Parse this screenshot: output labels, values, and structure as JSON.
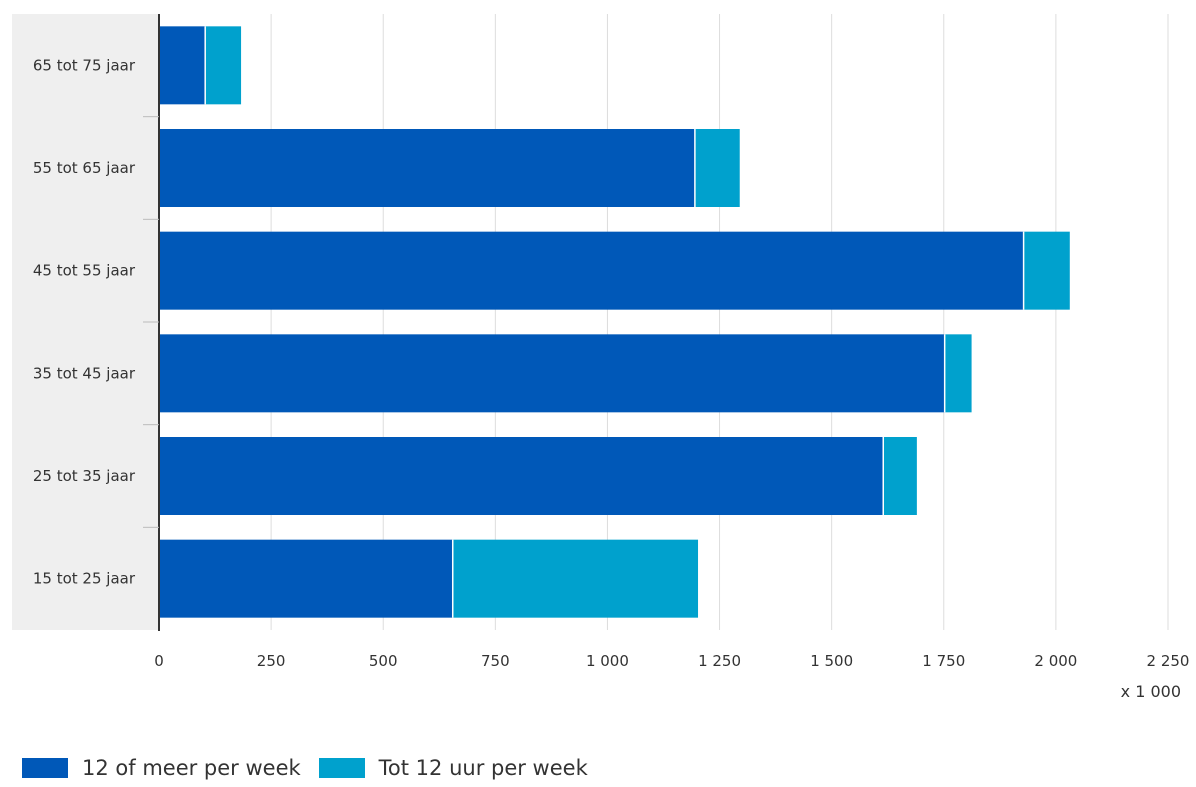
{
  "chart_data": {
    "type": "bar",
    "orientation": "horizontal",
    "stacked": true,
    "categories": [
      "65 tot 75 jaar",
      "55 tot 65 jaar",
      "45 tot 55 jaar",
      "35 tot 45 jaar",
      "25 tot 35 jaar",
      "15 tot 25 jaar"
    ],
    "series": [
      {
        "name": "12 of meer per week",
        "color": "#0058b8",
        "values": [
          103,
          1195,
          1928,
          1752,
          1615,
          655
        ]
      },
      {
        "name": "Tot 12 uur per week",
        "color": "#00a1cd",
        "values": [
          80,
          100,
          103,
          60,
          75,
          547
        ]
      }
    ],
    "xlim": [
      0,
      2250
    ],
    "xticks": [
      0,
      250,
      500,
      750,
      1000,
      1250,
      1500,
      1750,
      2000,
      2250
    ],
    "xtick_labels": [
      "0",
      "250",
      "500",
      "750",
      "1 000",
      "1 250",
      "1 500",
      "1 750",
      "2 000",
      "2 250"
    ],
    "x_unit": "x 1 000",
    "grid": true,
    "legend_position": "bottom-left"
  }
}
